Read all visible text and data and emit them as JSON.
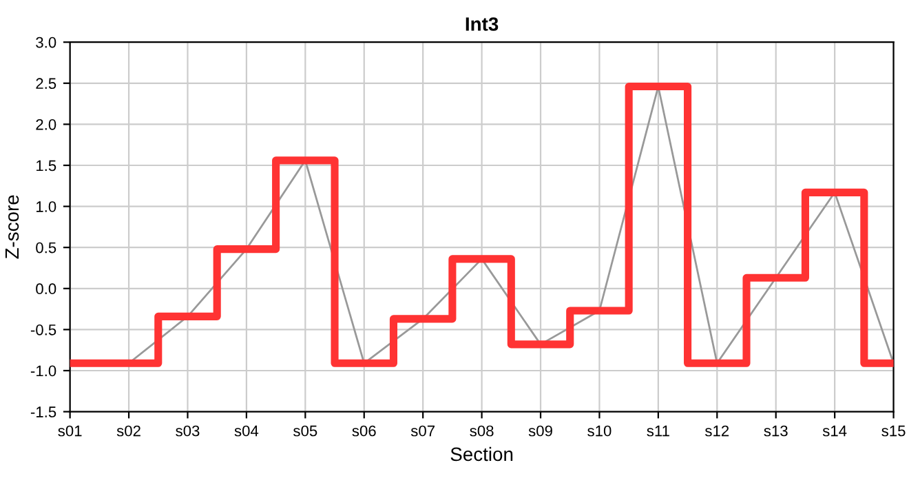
{
  "chart_data": {
    "type": "step",
    "title": "Int3",
    "xlabel": "Section",
    "ylabel": "Z-score",
    "categories": [
      "s01",
      "s02",
      "s03",
      "s04",
      "s05",
      "s06",
      "s07",
      "s08",
      "s09",
      "s10",
      "s11",
      "s12",
      "s13",
      "s14",
      "s15"
    ],
    "series": [
      {
        "color": "#ff3333",
        "values": [
          -0.91,
          -0.91,
          -0.34,
          0.48,
          1.56,
          -0.91,
          -0.37,
          0.36,
          -0.68,
          -0.27,
          2.46,
          -0.91,
          0.13,
          1.17,
          -0.91
        ]
      },
      {
        "type": "line",
        "color": "#999999",
        "values": [
          -0.91,
          -0.91,
          -0.34,
          0.48,
          1.56,
          -0.91,
          -0.37,
          0.36,
          -0.68,
          -0.27,
          2.46,
          -0.91,
          0.13,
          1.17,
          -0.91
        ]
      }
    ],
    "ylim": [
      -1.5,
      3.0
    ],
    "yticks": [
      {
        "value": -1.5,
        "label": "-1.5"
      },
      {
        "value": -1.0,
        "label": "-1.0"
      },
      {
        "value": -0.5,
        "label": "-0.5"
      },
      {
        "value": 0,
        "label": "0.0"
      },
      {
        "value": 0.5,
        "label": "0.5"
      },
      {
        "value": 1.0,
        "label": "1.0"
      },
      {
        "value": 1.5,
        "label": "1.5"
      },
      {
        "value": 2.0,
        "label": "2.0"
      },
      {
        "value": 2.5,
        "label": "2.5"
      },
      {
        "value": 3.0,
        "label": "3.0"
      }
    ],
    "grid": true,
    "legend": false
  }
}
